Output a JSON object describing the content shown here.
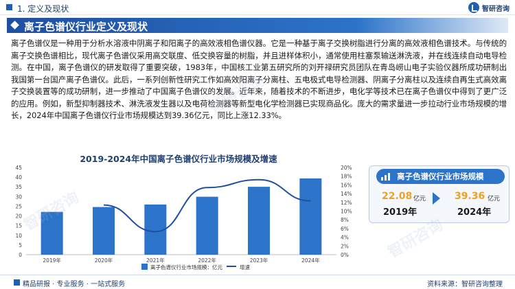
{
  "header": {
    "section": "1. 定义及现状",
    "logo": "智研咨询"
  },
  "title": "离子色谱仪行业定义及现状",
  "body": "离子色谱仪是一种用于分析水溶液中阴离子和阳离子的高效液相色谱仪器。它是一种基于离子交换树脂进行分离的高效液相色谱技术。与传统的离子交换色谱相比，现代离子色谱仪采用高交联度、低交换容量的树脂，并且进样体积小，通常使用柱塞泵输送淋洗液，并在线连续自动电导检测。在中国，离子色谱仪的研发取得了重要突破，1983年，中国核工业第五研究所的刘开禄研究员团队在青岛崂山电子实验仪器所成功研制出我国第一台国产离子色谱仪。此后，一系列创新性研究工作如高效阳离子分离柱、五电极式电导检测器、阴离子分离柱以及连续自再生式高效离子交换装置等的成功研制，进一步推动了中国离子色谱仪的发展。近年来，随着技术的不断进步，电化学等技术已在离子色谱仪中得到了更广泛的应用。例如，新型抑制器技术、淋洗液发生器以及电荷检测器等新型电化学检测器已实现商品化。庞大的需求量进一步拉动行业市场规模的增长，2024年中国离子色谱仪行业市场规模达到39.36亿元，同比上涨12.33%。",
  "chart_data": {
    "type": "bar",
    "title": "2019-2024年中国离子色谱仪行业市场规模及增速",
    "categories": [
      "2019年",
      "2020年",
      "2021年",
      "2022年",
      "2023年",
      "2024年"
    ],
    "series": [
      {
        "name": "离子色谱仪行业市场规模：亿元",
        "type": "bar",
        "axis": "left",
        "color": "#2c74c9",
        "values": [
          22.08,
          24.6,
          25.9,
          29.9,
          35.04,
          39.36
        ]
      },
      {
        "name": "增速",
        "type": "line",
        "axis": "right",
        "color": "#1f4fa0",
        "values": [
          null,
          11.4,
          5.3,
          15.4,
          17.2,
          12.33
        ]
      }
    ],
    "yticks_left": [
      "0",
      "5",
      "10",
      "15",
      "20",
      "25",
      "30",
      "35",
      "40",
      "45"
    ],
    "yticks_right": [
      "0%",
      "2%",
      "4%",
      "6%",
      "8%",
      "10%",
      "12%",
      "14%",
      "16%",
      "18%",
      "20%"
    ],
    "ylim_left": [
      0,
      45
    ],
    "ylim_right": [
      0,
      20
    ],
    "grid": false,
    "legend": "bottom"
  },
  "kpi": {
    "title": "离子色谱仪行业市场规模",
    "left_value": "22.08",
    "left_unit": "亿元",
    "left_year": "2019年",
    "right_value": "39.36",
    "right_unit": "亿元",
    "right_year": "2024年"
  },
  "footer": {
    "left": "精品研报 · 专业服务 · 一站式服务",
    "right": "资料来源：智研咨询整理"
  },
  "watermark": "智研咨询"
}
